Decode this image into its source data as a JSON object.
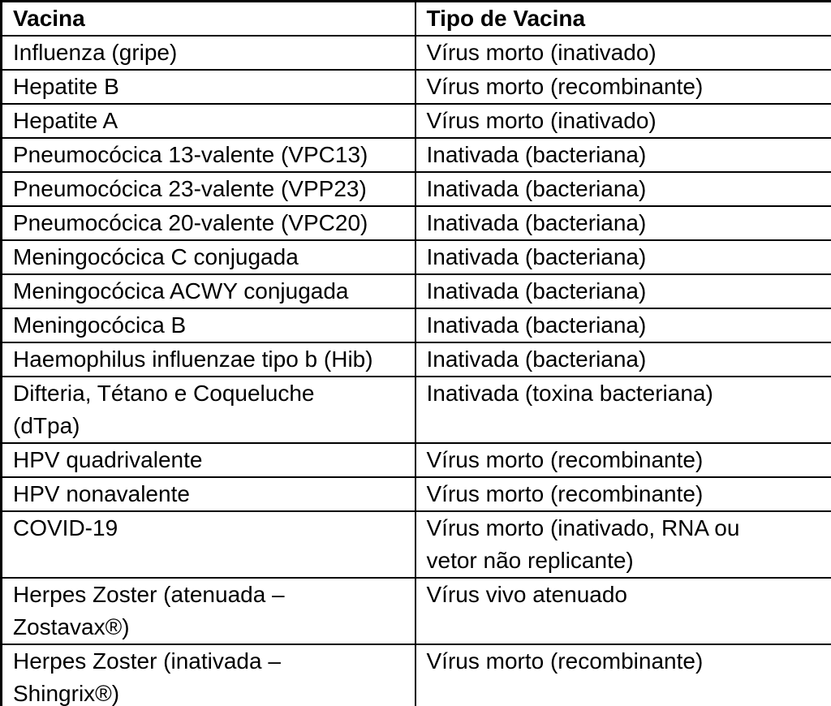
{
  "table": {
    "headers": {
      "vacina": "Vacina",
      "tipo": "Tipo de Vacina"
    },
    "rows": [
      {
        "vacina": "Influenza (gripe)",
        "tipo": "Vírus morto (inativado)"
      },
      {
        "vacina": "Hepatite B",
        "tipo": "Vírus morto (recombinante)"
      },
      {
        "vacina": "Hepatite A",
        "tipo": "Vírus morto (inativado)"
      },
      {
        "vacina": "Pneumocócica 13-valente (VPC13)",
        "tipo": "Inativada (bacteriana)"
      },
      {
        "vacina": "Pneumocócica 23-valente (VPP23)",
        "tipo": "Inativada (bacteriana)"
      },
      {
        "vacina": "Pneumocócica 20-valente (VPC20)",
        "tipo": "Inativada (bacteriana)"
      },
      {
        "vacina": "Meningocócica C conjugada",
        "tipo": "Inativada (bacteriana)"
      },
      {
        "vacina": "Meningocócica ACWY conjugada",
        "tipo": "Inativada (bacteriana)"
      },
      {
        "vacina": "Meningocócica B",
        "tipo": "Inativada (bacteriana)"
      },
      {
        "vacina": "Haemophilus influenzae tipo b (Hib)",
        "tipo": "Inativada (bacteriana)"
      },
      {
        "vacina": "Difteria, Tétano e Coqueluche\n(dTpa)",
        "tipo": "Inativada (toxina bacteriana)"
      },
      {
        "vacina": "HPV quadrivalente",
        "tipo": "Vírus morto (recombinante)"
      },
      {
        "vacina": "HPV nonavalente",
        "tipo": "Vírus morto (recombinante)"
      },
      {
        "vacina": "COVID-19",
        "tipo": "Vírus morto (inativado, RNA ou\nvetor não replicante)"
      },
      {
        "vacina": "Herpes Zoster (atenuada –\nZostavax®)",
        "tipo": "Vírus vivo atenuado"
      },
      {
        "vacina": "Herpes Zoster (inativada –\nShingrix®)",
        "tipo": "Vírus morto (recombinante)"
      }
    ]
  },
  "colors": {
    "border": "#000000",
    "text": "#000000",
    "background": "#ffffff"
  }
}
